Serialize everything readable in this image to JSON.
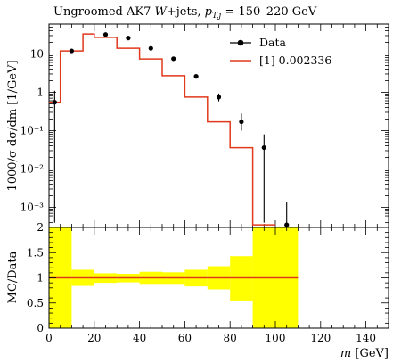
{
  "title": "Ungroomed AK7 W+jets, p_{T,j} = 150–220 GeV",
  "title_parts": {
    "main": "Ungroomed AK7 ",
    "w": "W",
    "jets": "+jets, ",
    "pt": "p",
    "pt_sub": "T,j",
    "range": " = 150–220 GeV"
  },
  "colors": {
    "data": "#000000",
    "mc": "#e0391c",
    "band": "#ffff00",
    "ratio_line": "#e0391c"
  },
  "chart_data": [
    {
      "type": "line",
      "panel": "main",
      "ylabel": "1000/σ dσ/dm [1/GeV]",
      "yscale": "log",
      "ylim": [
        0.0003,
        60
      ],
      "xlim": [
        0,
        150
      ],
      "ytick_labels": [
        "10⁻³",
        "10⁻²",
        "10⁻¹",
        "1",
        "10"
      ],
      "ytick_values": [
        0.001,
        0.01,
        0.1,
        1,
        10
      ],
      "legend": {
        "placement": "top-right",
        "entries": [
          "Data",
          "[1] 0.002336"
        ]
      },
      "bin_edges": [
        0,
        5,
        15,
        20,
        30,
        40,
        50,
        60,
        70,
        80,
        90,
        100,
        110
      ],
      "series": [
        {
          "name": "Data",
          "x": [
            2.5,
            10,
            25,
            35,
            45,
            55,
            65,
            75,
            85,
            95,
            105
          ],
          "y": [
            0.55,
            12,
            32,
            26,
            14,
            7.5,
            2.6,
            0.75,
            0.17,
            0.036,
            0.00035
          ],
          "yerr_low": [
            0.0004,
            11,
            29,
            24,
            13,
            6.9,
            2.35,
            0.58,
            0.1,
            0.0004,
            0.0003
          ],
          "yerr_high": [
            1.1,
            13,
            35,
            28,
            15,
            8.1,
            2.85,
            0.93,
            0.28,
            0.08,
            0.0014
          ]
        },
        {
          "name": "[1] 0.002336",
          "bin_values": [
            0.55,
            12,
            33,
            27,
            14,
            7.4,
            2.7,
            0.75,
            0.17,
            0.036,
            0.00035
          ]
        }
      ]
    },
    {
      "type": "line",
      "panel": "ratio",
      "ylabel": "MC/Data",
      "xlabel": "m [GeV]",
      "ylim": [
        0,
        2
      ],
      "xlim": [
        0,
        150
      ],
      "ytick_labels": [
        "0",
        "0.5",
        "1",
        "1.5",
        "2"
      ],
      "ytick_values": [
        0,
        0.5,
        1,
        1.5,
        2
      ],
      "xtick_labels": [
        "0",
        "20",
        "40",
        "60",
        "80",
        "100",
        "120",
        "140"
      ],
      "xtick_values": [
        0,
        20,
        40,
        60,
        80,
        100,
        120,
        140
      ],
      "band_edges": [
        0,
        10,
        20,
        30,
        40,
        50,
        60,
        70,
        80,
        90,
        100,
        110
      ],
      "band_low": [
        0,
        0.84,
        0.9,
        0.91,
        0.88,
        0.88,
        0.83,
        0.77,
        0.55,
        0,
        0
      ],
      "band_high": [
        2,
        1.16,
        1.09,
        1.08,
        1.12,
        1.11,
        1.16,
        1.23,
        1.43,
        2,
        2
      ],
      "ratio_line": {
        "y": 1,
        "x_range": [
          0,
          110
        ]
      }
    }
  ]
}
